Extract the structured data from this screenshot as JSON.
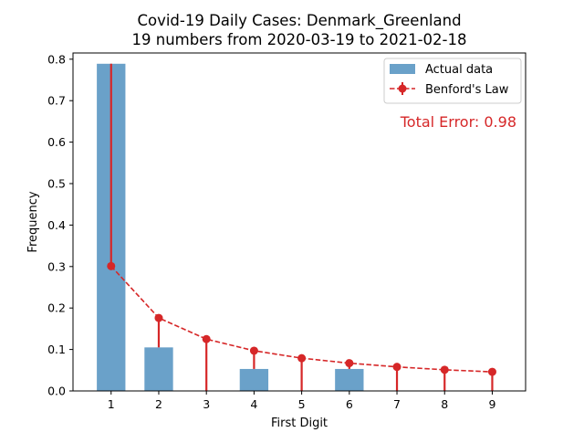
{
  "chart_data": {
    "type": "bar",
    "title": "Covid-19 Daily Cases: Denmark_Greenland",
    "subtitle": "19 numbers from 2020-03-19 to 2021-02-18",
    "xlabel": "First Digit",
    "ylabel": "Frequency",
    "categories": [
      "1",
      "2",
      "3",
      "4",
      "5",
      "6",
      "7",
      "8",
      "9"
    ],
    "x": [
      1,
      2,
      3,
      4,
      5,
      6,
      7,
      8,
      9
    ],
    "xlim": [
      0.2,
      9.7
    ],
    "ylim": [
      0,
      0.815
    ],
    "yticks": [
      0.0,
      0.1,
      0.2,
      0.3,
      0.4,
      0.5,
      0.6,
      0.7,
      0.8
    ],
    "ytick_labels": [
      "0.0",
      "0.1",
      "0.2",
      "0.3",
      "0.4",
      "0.5",
      "0.6",
      "0.7",
      "0.8"
    ],
    "grid": false,
    "legend_position": "top-right",
    "series": [
      {
        "name": "Actual data",
        "kind": "bar",
        "color": "#6aa1c9",
        "values": [
          0.789,
          0.105,
          0.0,
          0.053,
          0.0,
          0.053,
          0.0,
          0.0,
          0.0
        ]
      },
      {
        "name": "Benford's Law",
        "kind": "line",
        "style": "dashed, circle markers, error bars",
        "color": "#d62728",
        "values": [
          0.301,
          0.176,
          0.125,
          0.097,
          0.079,
          0.067,
          0.058,
          0.051,
          0.046
        ]
      }
    ],
    "annotation": {
      "text": "Total Error: 0.98",
      "color": "#d62728"
    }
  }
}
